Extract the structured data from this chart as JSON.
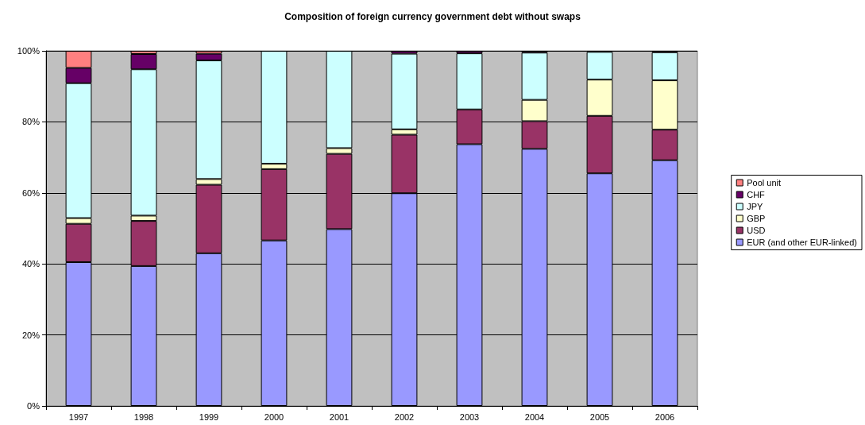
{
  "chart_data": {
    "type": "bar",
    "title": "Composition of foreign currency government debt without swaps",
    "categories": [
      "1997",
      "1998",
      "1999",
      "2000",
      "2001",
      "2002",
      "2003",
      "2004",
      "2005",
      "2006"
    ],
    "stacked": true,
    "series": [
      {
        "name": "EUR (and other EUR-linked)",
        "color": "#9999ff",
        "values": [
          40.5,
          39.4,
          43.0,
          46.6,
          49.8,
          59.9,
          73.7,
          72.4,
          65.5,
          69.2
        ]
      },
      {
        "name": "USD",
        "color": "#993366",
        "values": [
          10.8,
          12.7,
          19.3,
          20.1,
          21.2,
          16.5,
          9.8,
          7.8,
          16.2,
          8.6
        ]
      },
      {
        "name": "GBP",
        "color": "#ffffcc",
        "values": [
          1.6,
          1.5,
          1.6,
          1.5,
          1.6,
          1.5,
          null,
          6.0,
          10.2,
          13.9
        ]
      },
      {
        "name": "JPY",
        "color": "#ccffff",
        "values": [
          38.0,
          41.2,
          33.4,
          31.8,
          27.4,
          21.3,
          15.8,
          13.3,
          7.8,
          7.9
        ]
      },
      {
        "name": "CHF",
        "color": "#660066",
        "values": [
          4.3,
          4.3,
          1.9,
          null,
          null,
          0.8,
          0.7,
          0.5,
          0.3,
          0.4
        ]
      },
      {
        "name": "Pool unit",
        "color": "#ff8080",
        "values": [
          4.8,
          0.9,
          0.8,
          null,
          null,
          null,
          null,
          null,
          null,
          null
        ]
      }
    ],
    "ylim": [
      0,
      100
    ],
    "yticks": [
      {
        "value": 0,
        "label": "0%"
      },
      {
        "value": 20,
        "label": "20%"
      },
      {
        "value": 40,
        "label": "40%"
      },
      {
        "value": 60,
        "label": "60%"
      },
      {
        "value": 80,
        "label": "80%"
      },
      {
        "value": 100,
        "label": "100%"
      }
    ],
    "grid": "y",
    "legend": "right"
  }
}
